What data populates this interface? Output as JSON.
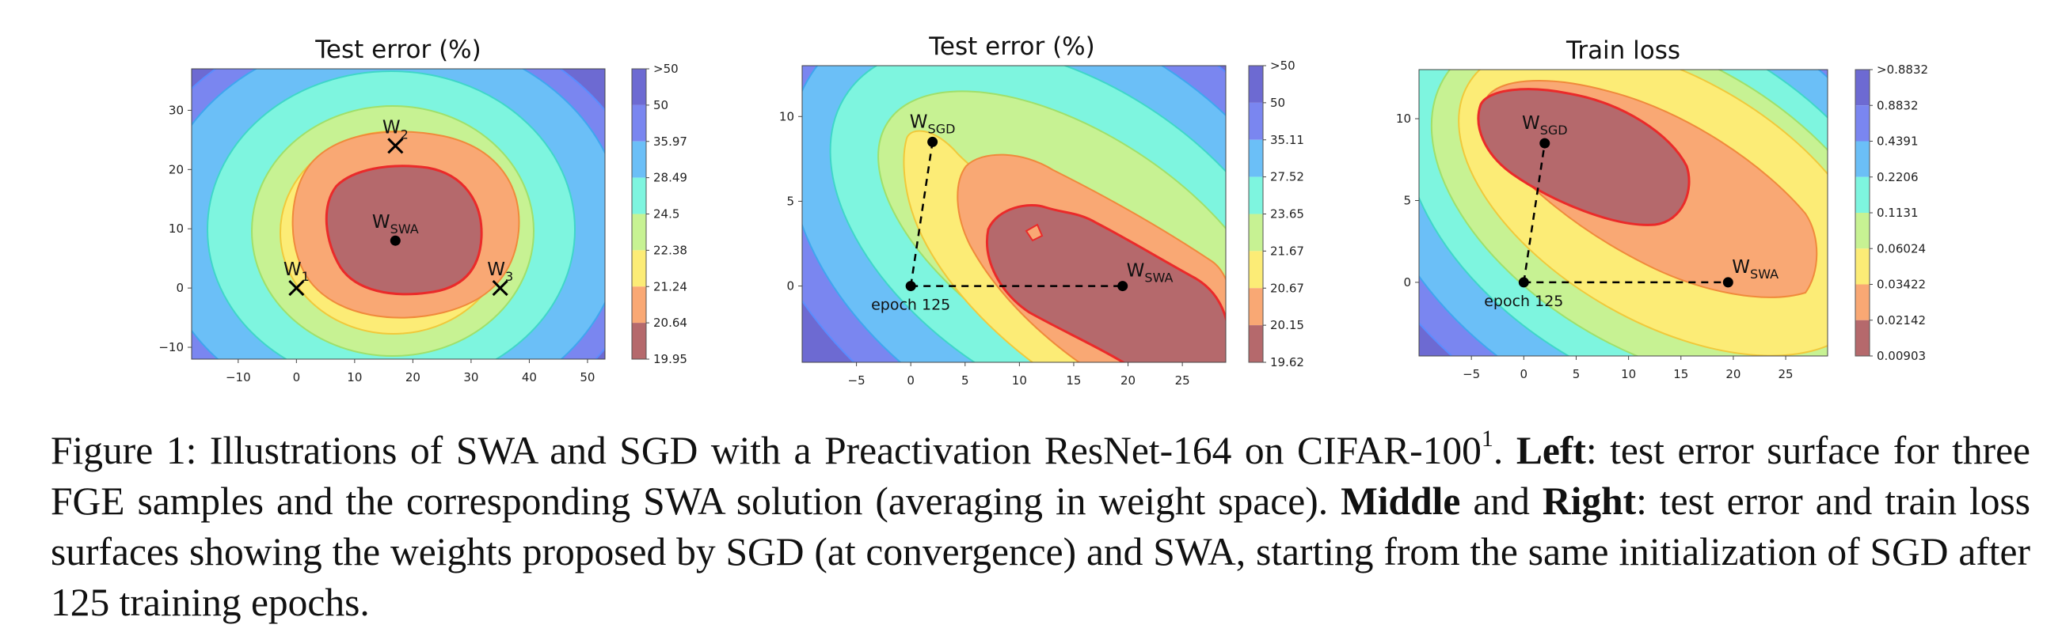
{
  "chart_data": [
    {
      "type": "contour",
      "title": "Test error (%)",
      "xlim": [
        -18,
        53
      ],
      "ylim": [
        -12,
        37
      ],
      "xticks": [
        -10,
        0,
        10,
        20,
        30,
        40,
        50
      ],
      "yticks": [
        -10,
        0,
        10,
        20,
        30
      ],
      "colorbar_ticks": [
        ">50",
        "50",
        "35.97",
        "28.49",
        "24.5",
        "22.38",
        "21.24",
        "20.64",
        "19.95"
      ],
      "level_colors": [
        "#6d6ad2",
        "#7a86f0",
        "#6bbff7",
        "#7ef5df",
        "#c7f293",
        "#fcec76",
        "#f9a874",
        "#b5696c"
      ],
      "points": [
        {
          "label": "W",
          "sub": "SWA",
          "x": 17,
          "y": 8,
          "marker": "dot"
        },
        {
          "label": "W",
          "sub": "1",
          "x": 0,
          "y": 0,
          "marker": "cross"
        },
        {
          "label": "W",
          "sub": "2",
          "x": 17,
          "y": 24,
          "marker": "cross"
        },
        {
          "label": "W",
          "sub": "3",
          "x": 35,
          "y": 0,
          "marker": "cross"
        }
      ]
    },
    {
      "type": "contour",
      "title": "Test error (%)",
      "xlim": [
        -10,
        29
      ],
      "ylim": [
        -4.5,
        13
      ],
      "xticks": [
        -5,
        0,
        5,
        10,
        15,
        20,
        25
      ],
      "yticks": [
        0,
        5,
        10
      ],
      "colorbar_ticks": [
        ">50",
        "50",
        "35.11",
        "27.52",
        "23.65",
        "21.67",
        "20.67",
        "20.15",
        "19.62"
      ],
      "level_colors": [
        "#6d6ad2",
        "#7a86f0",
        "#6bbff7",
        "#7ef5df",
        "#c7f293",
        "#fcec76",
        "#f9a874",
        "#b5696c"
      ],
      "points": [
        {
          "label": "W",
          "sub": "SGD",
          "x": 2,
          "y": 8.5,
          "marker": "dot"
        },
        {
          "label": "W",
          "sub": "SWA",
          "x": 19.5,
          "y": 0,
          "marker": "dot"
        },
        {
          "label": "epoch 125",
          "sub": "",
          "x": 0,
          "y": 0,
          "marker": "dot"
        }
      ]
    },
    {
      "type": "contour",
      "title": "Train loss",
      "xlim": [
        -10,
        29
      ],
      "ylim": [
        -4.5,
        13
      ],
      "xticks": [
        -5,
        0,
        5,
        10,
        15,
        20,
        25
      ],
      "yticks": [
        0,
        5,
        10
      ],
      "colorbar_ticks": [
        ">0.8832",
        "0.8832",
        "0.4391",
        "0.2206",
        "0.1131",
        "0.06024",
        "0.03422",
        "0.02142",
        "0.00903"
      ],
      "level_colors": [
        "#6d6ad2",
        "#7a86f0",
        "#6bbff7",
        "#7ef5df",
        "#c7f293",
        "#fcec76",
        "#f9a874",
        "#b5696c"
      ],
      "points": [
        {
          "label": "W",
          "sub": "SGD",
          "x": 2,
          "y": 8.5,
          "marker": "dot"
        },
        {
          "label": "W",
          "sub": "SWA",
          "x": 19.5,
          "y": 0,
          "marker": "dot"
        },
        {
          "label": "epoch 125",
          "sub": "",
          "x": 0,
          "y": 0,
          "marker": "dot"
        }
      ]
    }
  ],
  "caption": {
    "prefix": "Figure 1: Illustrations of SWA and SGD with a Preactivation ResNet-",
    "resnet_num": "164",
    "mid": " on CIFAR-",
    "cifar_num": "100",
    "footnote": "1",
    "after_footnote": ". ",
    "left_bold": "Left",
    "left_text": ": test error surface for three FGE samples and the corresponding SWA solution (averaging in weight space). ",
    "middle_bold": "Middle",
    "and_text": " and ",
    "right_bold": "Right",
    "right_text": ": test error and train loss surfaces showing the weights proposed by SGD (at convergence) and SWA, starting from the same initialization of SGD after 125 training epochs."
  }
}
